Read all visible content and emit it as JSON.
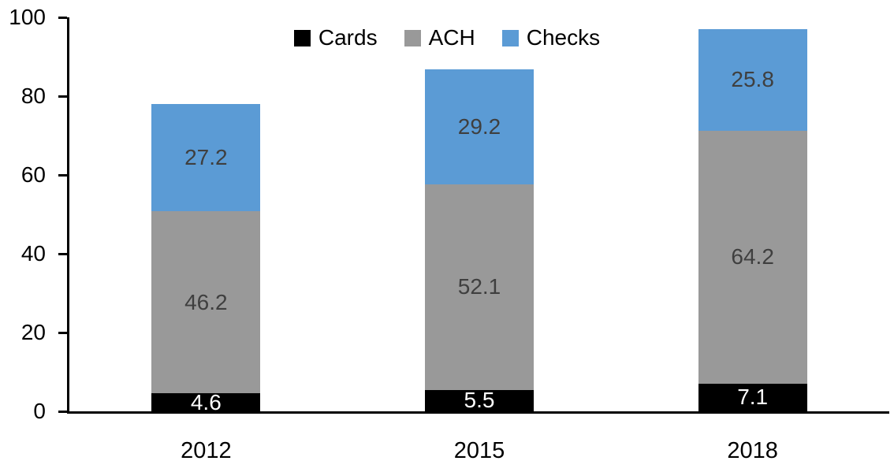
{
  "chart_data": {
    "type": "bar",
    "stacked": true,
    "title": "",
    "xlabel": "",
    "ylabel": "",
    "categories": [
      "2012",
      "2015",
      "2018"
    ],
    "series": [
      {
        "name": "Cards",
        "color": "#000000",
        "label_color": "#ffffff",
        "values": [
          4.6,
          5.5,
          7.1
        ]
      },
      {
        "name": "ACH",
        "color": "#999999",
        "label_color": "#3f3f3f",
        "values": [
          46.2,
          52.1,
          64.2
        ]
      },
      {
        "name": "Checks",
        "color": "#5b9bd5",
        "label_color": "#3f3f3f",
        "values": [
          27.2,
          29.2,
          25.8
        ]
      }
    ],
    "totals": [
      78.0,
      86.8,
      97.1
    ],
    "ylim": [
      0,
      100
    ],
    "yticks": [
      0,
      20,
      40,
      60,
      80,
      100
    ],
    "grid": false,
    "legend_position": "top-center",
    "axis_color": "#000000",
    "background_color": "#ffffff"
  }
}
